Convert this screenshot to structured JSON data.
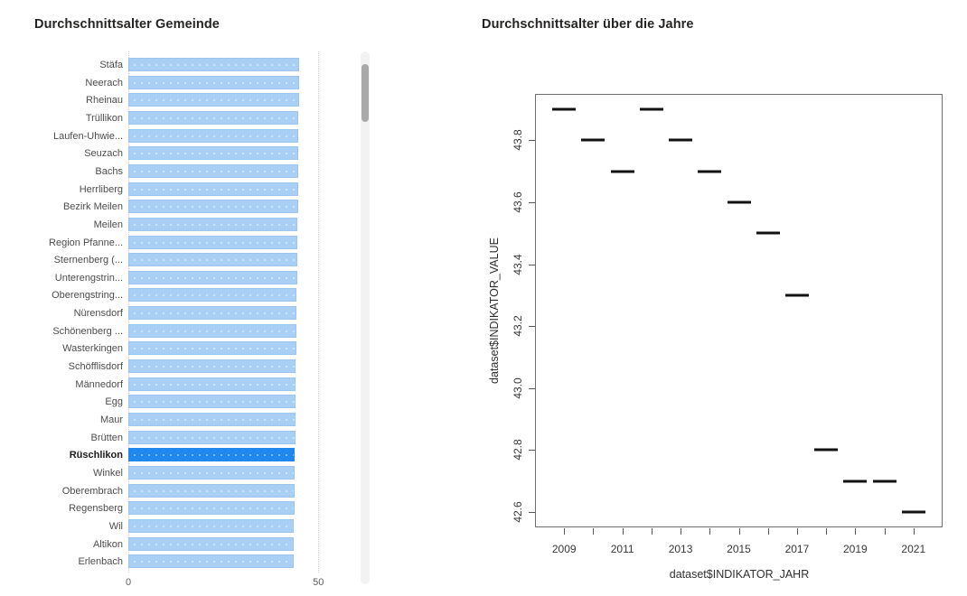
{
  "chart_data": [
    {
      "type": "bar",
      "orientation": "horizontal",
      "title": "Durchschnittsalter Gemeinde",
      "categories": [
        "Stäfa",
        "Neerach",
        "Rheinau",
        "Trüllikon",
        "Laufen-Uhwie...",
        "Seuzach",
        "Bachs",
        "Herrliberg",
        "Bezirk Meilen",
        "Meilen",
        "Region Pfanne...",
        "Sternenberg (...",
        "Unterengstrin...",
        "Oberengstring...",
        "Nürensdorf",
        "Schönenberg ...",
        "Wasterkingen",
        "Schöfflisdorf",
        "Männedorf",
        "Egg",
        "Maur",
        "Brütten",
        "Rüschlikon",
        "Winkel",
        "Oberembrach",
        "Regensberg",
        "Wil",
        "Altikon",
        "Erlenbach"
      ],
      "values": [
        45.0,
        44.9,
        44.9,
        44.8,
        44.8,
        44.7,
        44.7,
        44.6,
        44.6,
        44.5,
        44.5,
        44.4,
        44.4,
        44.3,
        44.3,
        44.2,
        44.2,
        44.1,
        44.1,
        44.0,
        44.0,
        43.9,
        43.8,
        43.8,
        43.7,
        43.7,
        43.6,
        43.6,
        43.5
      ],
      "highlighted_category": "Rüschlikon",
      "xlim": [
        0,
        50
      ],
      "x_ticks": [
        0,
        50
      ],
      "grid": "dotted vertical at ticks",
      "bar_color": "#A9CFF5",
      "highlight_color": "#1F87EE",
      "scrollbar": true
    },
    {
      "type": "scatter",
      "marker": "horizontal-dash",
      "title": "Durchschnittsalter über die Jahre",
      "xlabel": "dataset$INDIKATOR_JAHR",
      "ylabel": "dataset$INDIKATOR_VALUE",
      "x": [
        2009,
        2010,
        2011,
        2012,
        2013,
        2014,
        2015,
        2016,
        2017,
        2018,
        2019,
        2020,
        2021
      ],
      "y": [
        43.9,
        43.8,
        43.7,
        43.9,
        43.8,
        43.7,
        43.6,
        43.5,
        43.3,
        42.8,
        42.7,
        42.7,
        42.6
      ],
      "xlim": [
        2008,
        2022
      ],
      "ylim": [
        42.55,
        43.95
      ],
      "x_minor_ticks_every": 1,
      "x_tick_labels": [
        2009,
        2011,
        2013,
        2015,
        2017,
        2019,
        2021
      ],
      "y_ticks": [
        42.6,
        42.8,
        43.0,
        43.2,
        43.4,
        43.6,
        43.8
      ],
      "grid": false,
      "legend": "none",
      "marker_color": "#000000"
    }
  ]
}
